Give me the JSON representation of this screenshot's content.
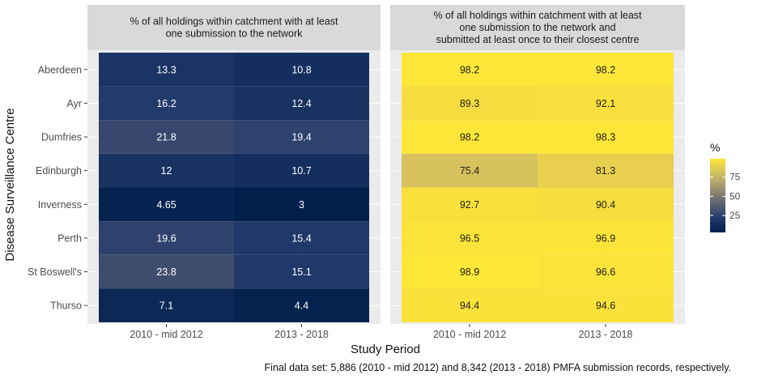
{
  "chart_data": {
    "type": "heatmap",
    "ylabel": "Disease Surveillance Centre",
    "xlabel": "Study Period",
    "caption": "Final data set: 5,886  (2010 - mid 2012) and 8,342 (2013 - 2018)  PMFA submission records, respectively.",
    "categories": [
      "2010 - mid 2012",
      "2013 - 2018"
    ],
    "rows": [
      "Aberdeen",
      "Ayr",
      "Dumfries",
      "Edinburgh",
      "Inverness",
      "Perth",
      "St Boswell's",
      "Thurso"
    ],
    "panels": [
      {
        "title_lines": [
          "% of all holdings within catchment with at least",
          "one submission to the network"
        ],
        "values": [
          [
            13.3,
            10.8
          ],
          [
            16.2,
            12.4
          ],
          [
            21.8,
            19.4
          ],
          [
            12,
            10.7
          ],
          [
            4.65,
            3
          ],
          [
            19.6,
            15.4
          ],
          [
            23.8,
            15.1
          ],
          [
            7.1,
            4.4
          ]
        ],
        "labels": [
          [
            "13.3",
            "10.8"
          ],
          [
            "16.2",
            "12.4"
          ],
          [
            "21.8",
            "19.4"
          ],
          [
            "12",
            "10.7"
          ],
          [
            "4.65",
            "3"
          ],
          [
            "19.6",
            "15.4"
          ],
          [
            "23.8",
            "15.1"
          ],
          [
            "7.1",
            "4.4"
          ]
        ],
        "label_color": "#ffffff"
      },
      {
        "title_lines": [
          "% of all holdings within catchment with at least",
          "one submission to the network and",
          "submitted at least once to their closest centre"
        ],
        "values": [
          [
            98.2,
            98.2
          ],
          [
            89.3,
            92.1
          ],
          [
            98.2,
            98.3
          ],
          [
            75.4,
            81.3
          ],
          [
            92.7,
            90.4
          ],
          [
            96.5,
            96.9
          ],
          [
            98.9,
            96.6
          ],
          [
            94.4,
            94.6
          ]
        ],
        "labels": [
          [
            "98.2",
            "98.2"
          ],
          [
            "89.3",
            "92.1"
          ],
          [
            "98.2",
            "98.3"
          ],
          [
            "75.4",
            "81.3"
          ],
          [
            "92.7",
            "90.4"
          ],
          [
            "96.5",
            "96.9"
          ],
          [
            "98.9",
            "96.6"
          ],
          [
            "94.4",
            "94.6"
          ]
        ],
        "label_color": "#222222"
      }
    ],
    "legend": {
      "title": "%",
      "ticks": [
        25,
        50,
        75
      ],
      "tick_labels": [
        "25",
        "50",
        "75"
      ],
      "range": [
        3,
        98.9
      ],
      "placement": "right"
    },
    "colors": {
      "scale": [
        "#00204c",
        "#243b6e",
        "#575c6d",
        "#7c7b78",
        "#a59c74",
        "#cbba69",
        "#f4d743",
        "#fde737"
      ],
      "panel_bg": "#ebebeb",
      "strip_bg": "#d9d9d9",
      "grid": "#ffffff"
    }
  }
}
